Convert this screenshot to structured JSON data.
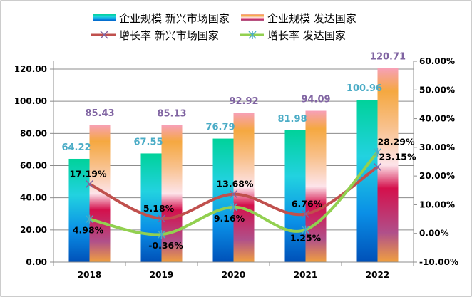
{
  "chart_data": {
    "type": "bar",
    "categories": [
      "2018",
      "2019",
      "2020",
      "2021",
      "2022"
    ],
    "series": [
      {
        "name": "企业规模 新兴市场国家",
        "kind": "bar",
        "axis": "left",
        "values": [
          64.22,
          67.55,
          76.79,
          81.98,
          100.96
        ],
        "labels": [
          "64.22",
          "67.55",
          "76.79",
          "81.98",
          "100.96"
        ],
        "label_color": "#4bacc6"
      },
      {
        "name": "企业规模 发达国家",
        "kind": "bar",
        "axis": "left",
        "values": [
          85.43,
          85.13,
          92.92,
          94.09,
          120.71
        ],
        "labels": [
          "85.43",
          "85.13",
          "92.92",
          "94.09",
          "120.71"
        ],
        "label_color": "#8064a2"
      },
      {
        "name": "增长率 新兴市场国家",
        "kind": "line",
        "axis": "right",
        "values": [
          17.19,
          5.18,
          13.68,
          6.76,
          23.15
        ],
        "labels": [
          "17.19%",
          "5.18%",
          "13.68%",
          "6.76%",
          "23.15%"
        ],
        "color": "#c0504d",
        "marker": "x"
      },
      {
        "name": "增长率 发达国家",
        "kind": "line",
        "axis": "right",
        "values": [
          4.98,
          -0.36,
          9.16,
          1.25,
          28.29
        ],
        "labels": [
          "4.98%",
          "-0.36%",
          "9.16%",
          "1.25%",
          "28.29%"
        ],
        "color": "#92d050",
        "marker": "asterisk"
      }
    ],
    "left_axis": {
      "ylim": [
        0,
        120
      ],
      "ticks": [
        "0.00",
        "20.00",
        "40.00",
        "60.00",
        "80.00",
        "100.00",
        "120.00"
      ]
    },
    "right_axis": {
      "ylim": [
        -10,
        60
      ],
      "ticks": [
        "-10.00%",
        "0.00%",
        "10.00%",
        "20.00%",
        "30.00%",
        "40.00%",
        "50.00%",
        "60.00%"
      ]
    },
    "grid": true,
    "legend": "top"
  }
}
